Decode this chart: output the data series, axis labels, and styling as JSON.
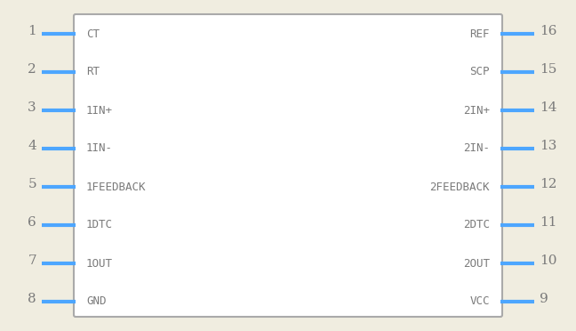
{
  "bg_color": "#f0ede0",
  "body_color": "#ffffff",
  "body_border_color": "#aaaaaa",
  "pin_color": "#4da6ff",
  "text_color": "#7a7a7a",
  "left_pins": [
    {
      "num": 1,
      "name": "CT"
    },
    {
      "num": 2,
      "name": "RT"
    },
    {
      "num": 3,
      "name": "1IN+"
    },
    {
      "num": 4,
      "name": "1IN-"
    },
    {
      "num": 5,
      "name": "1FEEDBACK"
    },
    {
      "num": 6,
      "name": "1DTC"
    },
    {
      "num": 7,
      "name": "1OUT"
    },
    {
      "num": 8,
      "name": "GND"
    }
  ],
  "right_pins": [
    {
      "num": 16,
      "name": "REF"
    },
    {
      "num": 15,
      "name": "SCP"
    },
    {
      "num": 14,
      "name": "2IN+"
    },
    {
      "num": 13,
      "name": "2IN-"
    },
    {
      "num": 12,
      "name": "2FEEDBACK"
    },
    {
      "num": 11,
      "name": "2DTC"
    },
    {
      "num": 10,
      "name": "2OUT"
    },
    {
      "num": 9,
      "name": "VCC"
    }
  ],
  "pin_lw": 3.0,
  "num_fontsize": 11,
  "name_fontsize": 9,
  "pin_num_font": "DejaVu Serif",
  "pin_name_font": "DejaVu Sans Mono"
}
